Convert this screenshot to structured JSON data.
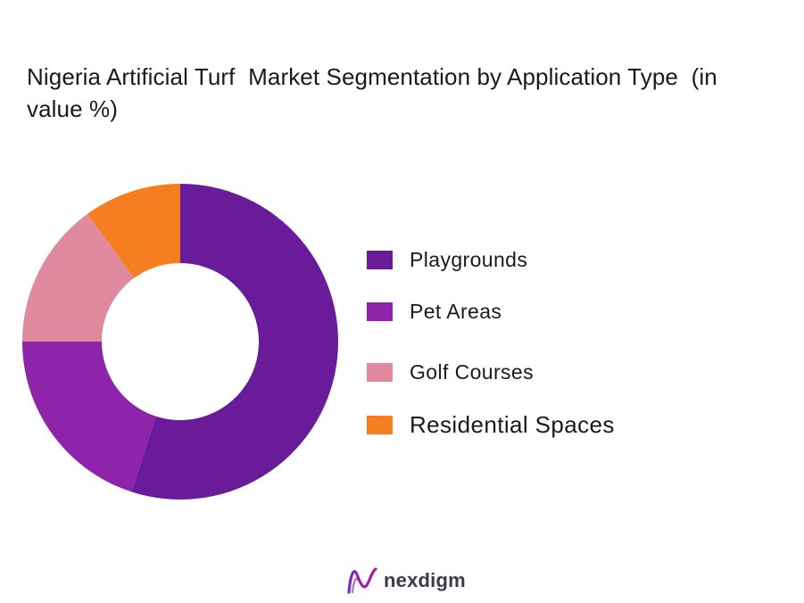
{
  "chart_data": {
    "type": "pie",
    "variant": "donut",
    "title": "Nigeria Artificial Turf  Market Segmentation by Application Type  (in value %)",
    "categories": [
      "Playgrounds",
      "Pet Areas",
      "Golf Courses",
      "Residential Spaces"
    ],
    "values": [
      55,
      20,
      15,
      10
    ],
    "colors": [
      "#6a1b9a",
      "#8e24aa",
      "#e08aa0",
      "#f57f20"
    ],
    "legend_position": "right"
  },
  "logo": {
    "text": "nexdigm"
  }
}
